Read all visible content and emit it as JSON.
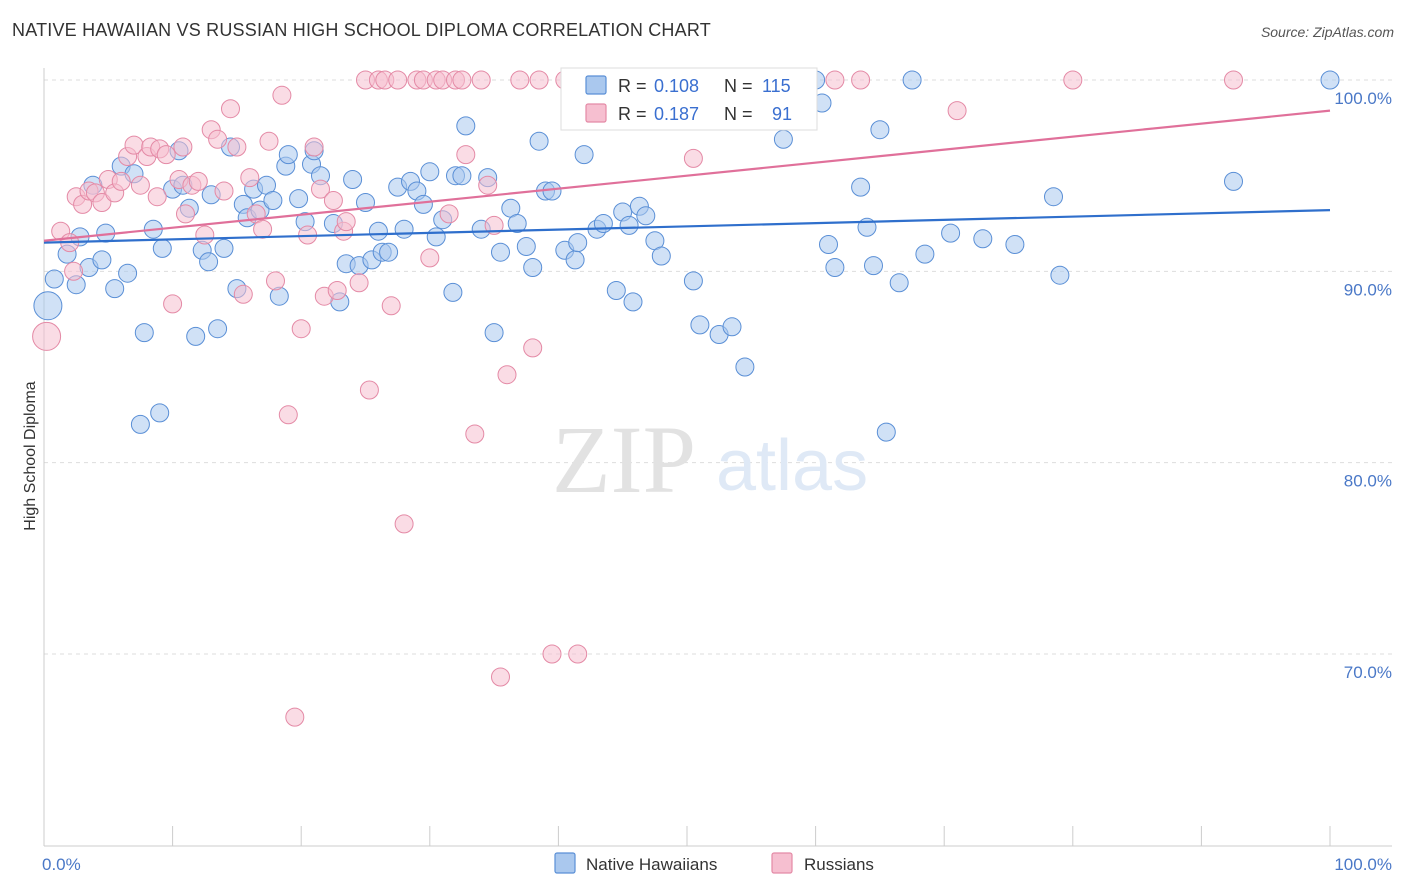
{
  "header": {
    "title": "NATIVE HAWAIIAN VS RUSSIAN HIGH SCHOOL DIPLOMA CORRELATION CHART",
    "source": "Source: ZipAtlas.com"
  },
  "watermark": {
    "zip": "ZIP",
    "atlas": "atlas"
  },
  "colors": {
    "blue_fill": "#aac8ee",
    "blue_stroke": "#5a8fd6",
    "blue_line": "#2f6fcc",
    "pink_fill": "#f6bfd0",
    "pink_stroke": "#e48aa6",
    "pink_line": "#e0709a",
    "grid": "#dddddd",
    "tick_text": "#4a78c7"
  },
  "stats_box": {
    "rows": [
      {
        "r_label": "R =",
        "r_value": "0.108",
        "n_label": "N =",
        "n_value": "115"
      },
      {
        "r_label": "R =",
        "r_value": "0.187",
        "n_label": "N =",
        "n_value": "91"
      }
    ]
  },
  "chart_data": {
    "type": "scatter",
    "title": "NATIVE HAWAIIAN VS RUSSIAN HIGH SCHOOL DIPLOMA CORRELATION CHART",
    "xlabel": "",
    "ylabel": "High School Diploma",
    "xlim": [
      0,
      100
    ],
    "ylim": [
      60,
      102
    ],
    "x_ticks": [
      0,
      10,
      20,
      30,
      40,
      50,
      60,
      70,
      80,
      90,
      100
    ],
    "x_tick_labels": {
      "0": "0.0%",
      "100": "100.0%"
    },
    "y_ticks": [
      70,
      80,
      90,
      100
    ],
    "y_tick_labels": [
      "70.0%",
      "80.0%",
      "90.0%",
      "100.0%"
    ],
    "grid": true,
    "legend_position": "bottom-center",
    "series": [
      {
        "name": "Native Hawaiians",
        "r": 0.108,
        "n": 115,
        "trend": {
          "x0": 0,
          "y0": 91.5,
          "x1": 100,
          "y1": 93.2
        },
        "points": [
          [
            0.3,
            88.2
          ],
          [
            0.8,
            89.6
          ],
          [
            1.8,
            90.9
          ],
          [
            2.5,
            89.3
          ],
          [
            2.8,
            91.8
          ],
          [
            3.5,
            90.2
          ],
          [
            3.8,
            94.5
          ],
          [
            4.5,
            90.6
          ],
          [
            4.8,
            92.0
          ],
          [
            5.5,
            89.1
          ],
          [
            6.0,
            95.5
          ],
          [
            6.5,
            89.9
          ],
          [
            7.0,
            95.1
          ],
          [
            7.5,
            82.0
          ],
          [
            7.8,
            86.8
          ],
          [
            8.5,
            92.2
          ],
          [
            9.0,
            82.6
          ],
          [
            9.2,
            91.2
          ],
          [
            10.0,
            94.3
          ],
          [
            10.5,
            96.3
          ],
          [
            10.8,
            94.5
          ],
          [
            11.3,
            93.3
          ],
          [
            11.8,
            86.6
          ],
          [
            12.3,
            91.1
          ],
          [
            12.8,
            90.5
          ],
          [
            13.0,
            94.0
          ],
          [
            13.5,
            87.0
          ],
          [
            14.0,
            91.2
          ],
          [
            14.5,
            96.5
          ],
          [
            15.0,
            89.1
          ],
          [
            15.5,
            93.5
          ],
          [
            15.8,
            92.8
          ],
          [
            16.3,
            94.3
          ],
          [
            16.8,
            93.2
          ],
          [
            17.3,
            94.5
          ],
          [
            17.8,
            93.7
          ],
          [
            18.3,
            88.7
          ],
          [
            18.8,
            95.5
          ],
          [
            19.0,
            96.1
          ],
          [
            19.8,
            93.8
          ],
          [
            20.3,
            92.6
          ],
          [
            20.8,
            95.6
          ],
          [
            21.0,
            96.3
          ],
          [
            21.5,
            95.0
          ],
          [
            22.5,
            92.5
          ],
          [
            23.0,
            88.4
          ],
          [
            23.5,
            90.4
          ],
          [
            24.0,
            94.8
          ],
          [
            24.5,
            90.3
          ],
          [
            25.0,
            93.6
          ],
          [
            25.5,
            90.6
          ],
          [
            26.0,
            92.1
          ],
          [
            26.3,
            91.0
          ],
          [
            26.8,
            91.0
          ],
          [
            27.5,
            94.4
          ],
          [
            28.0,
            92.2
          ],
          [
            28.5,
            94.7
          ],
          [
            29.0,
            94.2
          ],
          [
            29.5,
            93.5
          ],
          [
            30.0,
            95.2
          ],
          [
            30.5,
            91.8
          ],
          [
            31.0,
            92.7
          ],
          [
            31.8,
            88.9
          ],
          [
            32.0,
            95.0
          ],
          [
            32.5,
            95.0
          ],
          [
            32.8,
            97.6
          ],
          [
            34.0,
            92.2
          ],
          [
            34.5,
            94.9
          ],
          [
            35.0,
            86.8
          ],
          [
            35.5,
            91.0
          ],
          [
            36.3,
            93.3
          ],
          [
            36.8,
            92.5
          ],
          [
            37.5,
            91.3
          ],
          [
            38.0,
            90.2
          ],
          [
            38.5,
            96.8
          ],
          [
            39.0,
            94.2
          ],
          [
            39.5,
            94.2
          ],
          [
            40.5,
            91.1
          ],
          [
            41.3,
            90.6
          ],
          [
            41.5,
            91.5
          ],
          [
            42.0,
            96.1
          ],
          [
            43.0,
            92.2
          ],
          [
            43.5,
            92.5
          ],
          [
            44.5,
            89.0
          ],
          [
            45.0,
            93.1
          ],
          [
            45.5,
            92.4
          ],
          [
            45.8,
            88.4
          ],
          [
            46.3,
            93.4
          ],
          [
            46.8,
            92.9
          ],
          [
            47.5,
            91.6
          ],
          [
            48.0,
            90.8
          ],
          [
            50.5,
            89.5
          ],
          [
            51.0,
            87.2
          ],
          [
            52.5,
            86.7
          ],
          [
            53.5,
            87.1
          ],
          [
            54.5,
            85.0
          ],
          [
            57.5,
            96.9
          ],
          [
            60.0,
            100.0
          ],
          [
            60.5,
            98.8
          ],
          [
            61.0,
            91.4
          ],
          [
            61.5,
            90.2
          ],
          [
            63.5,
            94.4
          ],
          [
            64.0,
            92.3
          ],
          [
            64.5,
            90.3
          ],
          [
            65.0,
            97.4
          ],
          [
            65.5,
            81.6
          ],
          [
            66.5,
            89.4
          ],
          [
            67.5,
            100.0
          ],
          [
            68.5,
            90.9
          ],
          [
            70.5,
            92.0
          ],
          [
            73.0,
            91.7
          ],
          [
            75.5,
            91.4
          ],
          [
            78.5,
            93.9
          ],
          [
            79.0,
            89.8
          ],
          [
            92.5,
            94.7
          ],
          [
            100.0,
            100.0
          ]
        ],
        "point_radii": {
          "0": 14
        }
      },
      {
        "name": "Russians",
        "r": 0.187,
        "n": 91,
        "trend": {
          "x0": 0,
          "y0": 91.6,
          "x1": 100,
          "y1": 98.4
        },
        "points": [
          [
            0.2,
            86.6
          ],
          [
            1.3,
            92.1
          ],
          [
            2.0,
            91.5
          ],
          [
            2.3,
            90.0
          ],
          [
            2.5,
            93.9
          ],
          [
            3.0,
            93.5
          ],
          [
            3.5,
            94.2
          ],
          [
            4.0,
            94.1
          ],
          [
            4.5,
            93.6
          ],
          [
            5.0,
            94.8
          ],
          [
            5.5,
            94.1
          ],
          [
            6.0,
            94.7
          ],
          [
            6.5,
            96.0
          ],
          [
            7.0,
            96.6
          ],
          [
            7.5,
            94.5
          ],
          [
            8.0,
            96.0
          ],
          [
            8.3,
            96.5
          ],
          [
            8.8,
            93.9
          ],
          [
            9.0,
            96.4
          ],
          [
            9.5,
            96.1
          ],
          [
            10.0,
            88.3
          ],
          [
            10.5,
            94.8
          ],
          [
            10.8,
            96.5
          ],
          [
            11.0,
            93.0
          ],
          [
            11.5,
            94.5
          ],
          [
            12.0,
            94.7
          ],
          [
            12.5,
            91.9
          ],
          [
            13.0,
            97.4
          ],
          [
            13.5,
            96.9
          ],
          [
            14.0,
            94.2
          ],
          [
            14.5,
            98.5
          ],
          [
            15.0,
            96.5
          ],
          [
            15.5,
            88.8
          ],
          [
            16.0,
            94.9
          ],
          [
            16.5,
            93.0
          ],
          [
            17.0,
            92.2
          ],
          [
            17.5,
            96.8
          ],
          [
            18.0,
            89.5
          ],
          [
            18.5,
            99.2
          ],
          [
            19.0,
            82.5
          ],
          [
            19.5,
            66.7
          ],
          [
            20.0,
            87.0
          ],
          [
            20.5,
            91.9
          ],
          [
            21.0,
            96.5
          ],
          [
            21.5,
            94.3
          ],
          [
            21.8,
            88.7
          ],
          [
            22.5,
            93.7
          ],
          [
            22.8,
            89.0
          ],
          [
            23.3,
            92.1
          ],
          [
            23.5,
            92.6
          ],
          [
            24.5,
            89.4
          ],
          [
            25.0,
            100.0
          ],
          [
            25.3,
            83.8
          ],
          [
            26.0,
            100.0
          ],
          [
            26.5,
            100.0
          ],
          [
            27.0,
            88.2
          ],
          [
            27.5,
            100.0
          ],
          [
            28.0,
            76.8
          ],
          [
            29.0,
            100.0
          ],
          [
            29.5,
            100.0
          ],
          [
            30.0,
            90.7
          ],
          [
            30.5,
            100.0
          ],
          [
            31.0,
            100.0
          ],
          [
            31.5,
            93.0
          ],
          [
            32.0,
            100.0
          ],
          [
            32.5,
            100.0
          ],
          [
            32.8,
            96.1
          ],
          [
            33.5,
            81.5
          ],
          [
            34.0,
            100.0
          ],
          [
            34.5,
            94.5
          ],
          [
            35.0,
            92.4
          ],
          [
            35.5,
            68.8
          ],
          [
            36.0,
            84.6
          ],
          [
            37.0,
            100.0
          ],
          [
            38.0,
            86.0
          ],
          [
            38.5,
            100.0
          ],
          [
            39.5,
            70.0
          ],
          [
            40.5,
            100.0
          ],
          [
            41.5,
            70.0
          ],
          [
            44.0,
            100.0
          ],
          [
            45.0,
            100.0
          ],
          [
            46.0,
            100.0
          ],
          [
            50.5,
            95.9
          ],
          [
            52.0,
            100.0
          ],
          [
            54.5,
            100.0
          ],
          [
            58.5,
            100.0
          ],
          [
            61.5,
            100.0
          ],
          [
            63.5,
            100.0
          ],
          [
            71.0,
            98.4
          ],
          [
            80.0,
            100.0
          ],
          [
            92.5,
            100.0
          ]
        ],
        "point_radii": {
          "0": 14
        }
      }
    ]
  },
  "legend": {
    "items": [
      {
        "label": "Native Hawaiians"
      },
      {
        "label": "Russians"
      }
    ]
  }
}
